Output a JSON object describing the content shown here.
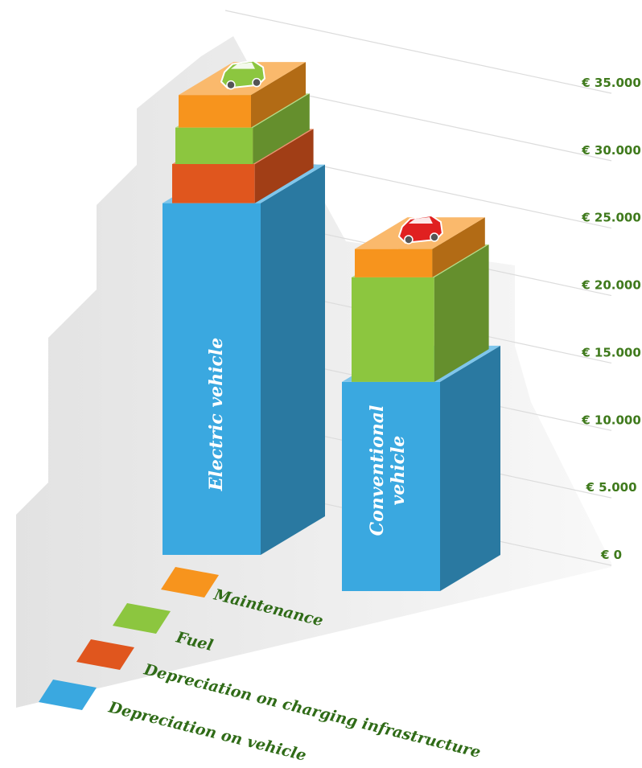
{
  "chart_data": {
    "type": "bar",
    "stacked": true,
    "categories": [
      "Electric vehicle",
      "Conventional vehicle"
    ],
    "category_label_lines": [
      [
        "Electric vehicle"
      ],
      [
        "Conventional",
        "vehicle"
      ]
    ],
    "series": [
      {
        "name": "Depreciation on vehicle",
        "color": "#3aa8e0",
        "values": [
          27000,
          17000
        ]
      },
      {
        "name": "Depreciation on charging infrastructure",
        "color": "#e0561e",
        "values": [
          3000,
          0
        ]
      },
      {
        "name": "Fuel",
        "color": "#8cc63f",
        "values": [
          2800,
          8500
        ]
      },
      {
        "name": "Maintenance",
        "color": "#f7941d",
        "values": [
          2500,
          2300
        ]
      }
    ],
    "legend_order": [
      "Maintenance",
      "Fuel",
      "Depreciation on charging infrastructure",
      "Depreciation on vehicle"
    ],
    "y_ticks": [
      0,
      5000,
      10000,
      15000,
      20000,
      25000,
      30000,
      35000
    ],
    "y_tick_labels": [
      "€ 0",
      "€ 5.000",
      "€ 10.000",
      "€ 15.000",
      "€ 20.000",
      "€ 25.000",
      "€ 30.000",
      "€ 35.000"
    ],
    "ylim": [
      0,
      35000
    ],
    "title": "",
    "xlabel": "",
    "ylabel": "",
    "grid": true,
    "legend_position": "bottom-left",
    "icons": [
      "green-car-icon",
      "red-car-icon"
    ]
  }
}
